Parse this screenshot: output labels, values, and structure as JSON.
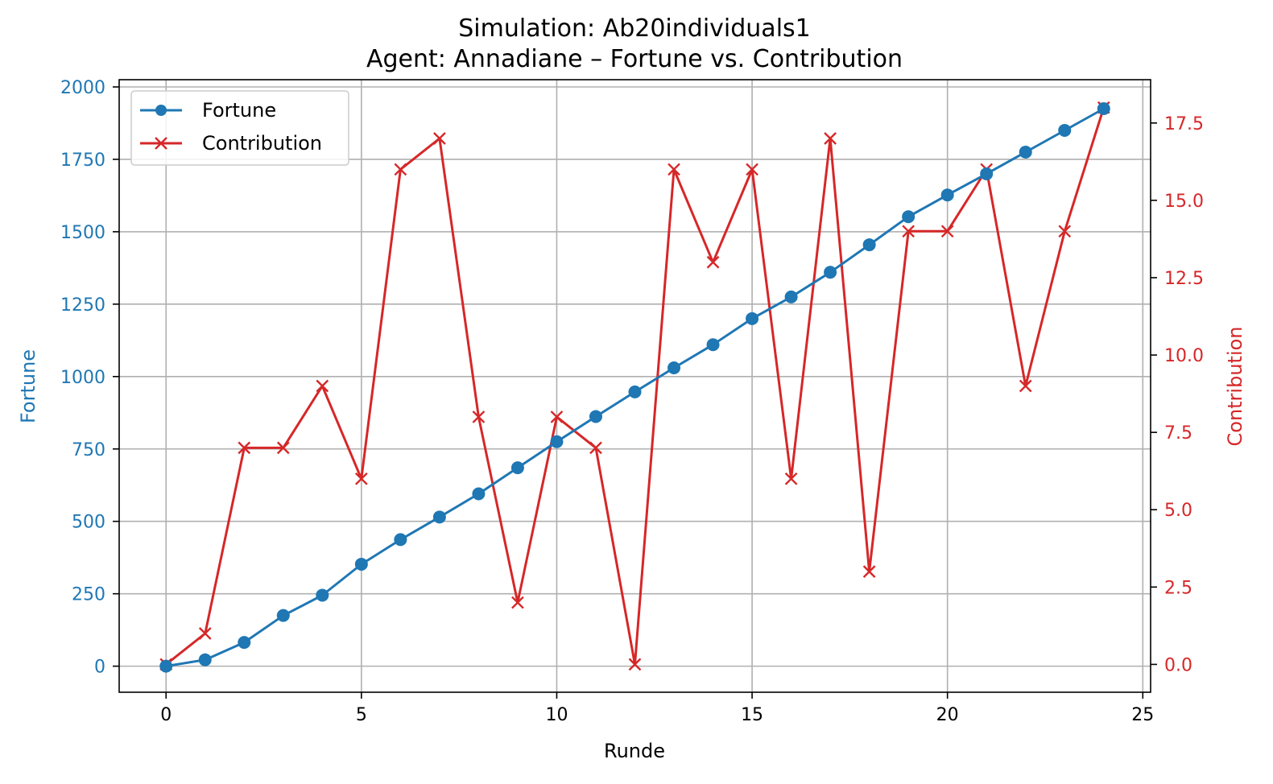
{
  "chart_data": {
    "type": "line",
    "title": "Simulation: Ab20individuals1",
    "subtitle": "Agent: Annadiane – Fortune vs. Contribution",
    "xlabel": "Runde",
    "ylabel_left": "Fortune",
    "ylabel_right": "Contribution",
    "x": [
      0,
      1,
      2,
      3,
      4,
      5,
      6,
      7,
      8,
      9,
      10,
      11,
      12,
      13,
      14,
      15,
      16,
      17,
      18,
      19,
      20,
      21,
      22,
      23,
      24
    ],
    "xlim": [
      -1.2,
      25.2
    ],
    "xticks": [
      0,
      5,
      10,
      15,
      20,
      25
    ],
    "ylim_left": [
      -90,
      2025
    ],
    "yticks_left": [
      0,
      250,
      500,
      750,
      1000,
      1250,
      1500,
      1750,
      2000
    ],
    "ylim_right": [
      -0.9,
      18.9
    ],
    "yticks_right": [
      "0.0",
      "2.5",
      "5.0",
      "7.5",
      "10.0",
      "12.5",
      "15.0",
      "17.5"
    ],
    "grid": true,
    "legend_position": "top-left",
    "colors": {
      "fortune": "#1f77b4",
      "contribution": "#d62728"
    },
    "series": [
      {
        "name": "Fortune",
        "axis": "left",
        "marker": "circle",
        "values": [
          0,
          22,
          82,
          175,
          245,
          352,
          437,
          515,
          595,
          685,
          775,
          862,
          947,
          1030,
          1110,
          1200,
          1275,
          1360,
          1455,
          1552,
          1627,
          1700,
          1775,
          1850,
          1925
        ]
      },
      {
        "name": "Contribution",
        "axis": "right",
        "marker": "x",
        "values": [
          0,
          1,
          7,
          7,
          9,
          6,
          16,
          17,
          8,
          2,
          8,
          7,
          0,
          16,
          13,
          16,
          6,
          17,
          3,
          14,
          14,
          16,
          9,
          14,
          18
        ]
      }
    ]
  }
}
